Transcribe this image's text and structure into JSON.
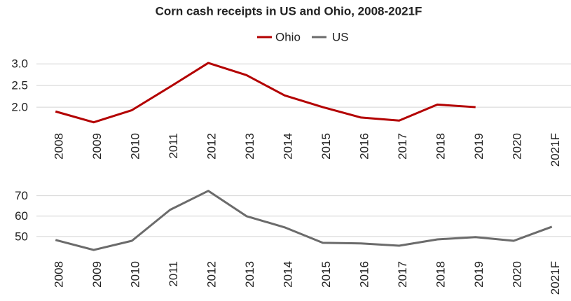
{
  "chart_data": [
    {
      "type": "line",
      "title": "Corn cash receipts in US and Ohio, 2008-2021F",
      "categories": [
        "2008",
        "2009",
        "2010",
        "2011",
        "2012",
        "2013",
        "2014",
        "2015",
        "2016",
        "2017",
        "2018",
        "2019",
        "2020",
        "2021F"
      ],
      "series": [
        {
          "name": "Ohio",
          "color": "#b30000",
          "values": [
            1.9,
            1.65,
            1.93,
            2.47,
            3.02,
            2.74,
            2.27,
            2.0,
            1.76,
            1.69,
            2.06,
            2.0,
            null,
            null
          ]
        }
      ],
      "ylim": [
        1.5,
        3.1
      ],
      "yticks": [
        {
          "value": 2,
          "label": "2.0"
        },
        2.5,
        {
          "value": 3,
          "label": "3.0"
        }
      ],
      "grid": true
    },
    {
      "type": "line",
      "categories": [
        "2008",
        "2009",
        "2010",
        "2011",
        "2012",
        "2013",
        "2014",
        "2015",
        "2016",
        "2017",
        "2018",
        "2019",
        "2020",
        "2021F"
      ],
      "series": [
        {
          "name": "US",
          "color": "#6b6b6b",
          "values": [
            48.3,
            43.4,
            47.9,
            63.1,
            72.4,
            60,
            54.5,
            46.9,
            46.6,
            45.5,
            48.6,
            49.7,
            47.9,
            54.8
          ]
        }
      ],
      "ylim": [
        40,
        74
      ],
      "yticks": [
        50,
        60,
        70
      ],
      "grid": true
    }
  ]
}
